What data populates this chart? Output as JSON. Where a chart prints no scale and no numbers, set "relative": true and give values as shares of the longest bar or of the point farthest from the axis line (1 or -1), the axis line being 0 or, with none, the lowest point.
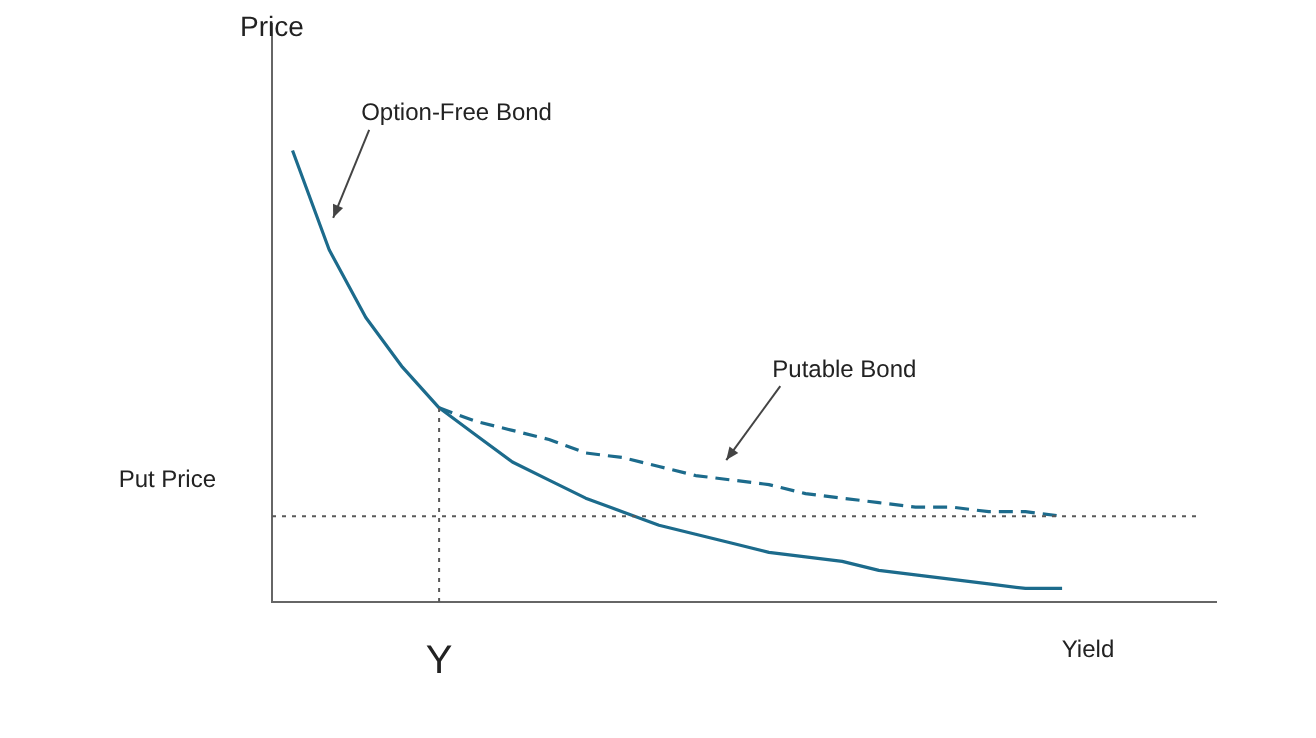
{
  "chart_data": {
    "type": "line",
    "relative": true,
    "ylabel": "Price",
    "xlabel": "Yield",
    "legend": false,
    "grid": false,
    "categories": [
      null,
      null,
      null,
      null,
      null,
      null,
      null,
      null,
      null,
      null,
      null,
      null,
      null,
      null,
      null,
      null,
      null,
      null,
      null,
      null,
      null,
      null
    ],
    "series": [
      {
        "name": "Option-Free Bond",
        "color": "#1c6b8c",
        "line_style": "solid",
        "values": [
          1,
          0.78,
          0.63,
          0.52,
          0.43,
          0.37,
          0.31,
          0.27,
          0.23,
          0.2,
          0.17,
          0.15,
          0.13,
          0.11,
          0.1,
          0.09,
          0.07,
          0.06,
          0.05,
          0.04,
          0.03,
          0.03
        ]
      },
      {
        "name": "Putable Bond",
        "color": "#1c6b8c",
        "line_style": "dashed",
        "values": [
          null,
          null,
          null,
          null,
          0.43,
          0.4,
          0.38,
          0.36,
          0.33,
          0.32,
          0.3,
          0.28,
          0.27,
          0.26,
          0.24,
          0.23,
          0.22,
          0.21,
          0.21,
          0.2,
          0.2,
          0.19
        ]
      }
    ],
    "ref_lines": [
      {
        "axis": "y",
        "value": 0.19,
        "label": "Put Price",
        "color": "#595959",
        "line_style": "dotted"
      }
    ],
    "annotations": [
      "Y"
    ]
  }
}
